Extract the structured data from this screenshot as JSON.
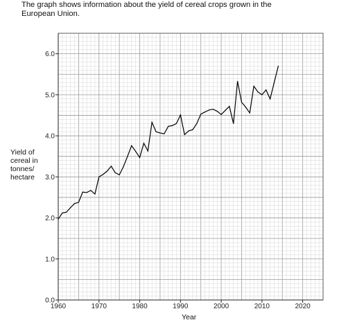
{
  "intro": {
    "line1": "The graph shows information about the yield of cereal crops grown in the",
    "line2": "European Union."
  },
  "chart_data": {
    "type": "line",
    "ylabel_lines": [
      "Yield of",
      "cereal in",
      "tonnes/",
      "hectare"
    ],
    "xlabel": "Year",
    "xlim": [
      1960,
      2025
    ],
    "ylim": [
      0.0,
      6.5
    ],
    "x_ticks": [
      1960,
      1970,
      1980,
      1990,
      2000,
      2010,
      2020
    ],
    "y_ticks": [
      0.0,
      1.0,
      2.0,
      3.0,
      4.0,
      5.0,
      6.0
    ],
    "y_tick_labels": [
      "0.0",
      "1.0",
      "2.0",
      "3.0",
      "4.0",
      "5.0",
      "6.0"
    ],
    "grid": true,
    "series": [
      {
        "color": "#000000",
        "x": [
          1960,
          1961,
          1962,
          1963,
          1964,
          1965,
          1966,
          1967,
          1968,
          1969,
          1970,
          1971,
          1972,
          1973,
          1974,
          1975,
          1976,
          1977,
          1978,
          1979,
          1980,
          1981,
          1982,
          1983,
          1984,
          1985,
          1986,
          1987,
          1988,
          1989,
          1990,
          1991,
          1992,
          1993,
          1994,
          1995,
          1996,
          1997,
          1998,
          1999,
          2000,
          2001,
          2002,
          2003,
          2004,
          2005,
          2006,
          2007,
          2008,
          2009,
          2010,
          2011,
          2012,
          2013,
          2014
        ],
        "y": [
          1.97,
          2.12,
          2.14,
          2.25,
          2.35,
          2.38,
          2.63,
          2.62,
          2.67,
          2.58,
          3.0,
          3.06,
          3.14,
          3.26,
          3.1,
          3.05,
          3.25,
          3.5,
          3.76,
          3.62,
          3.47,
          3.82,
          3.63,
          4.33,
          4.1,
          4.07,
          4.05,
          4.23,
          4.25,
          4.3,
          4.51,
          4.03,
          4.12,
          4.15,
          4.3,
          4.53,
          4.58,
          4.63,
          4.65,
          4.6,
          4.52,
          4.62,
          4.72,
          4.3,
          5.33,
          4.82,
          4.7,
          4.56,
          5.21,
          5.07,
          5.0,
          5.12,
          4.9,
          5.3,
          5.7
        ]
      }
    ]
  }
}
